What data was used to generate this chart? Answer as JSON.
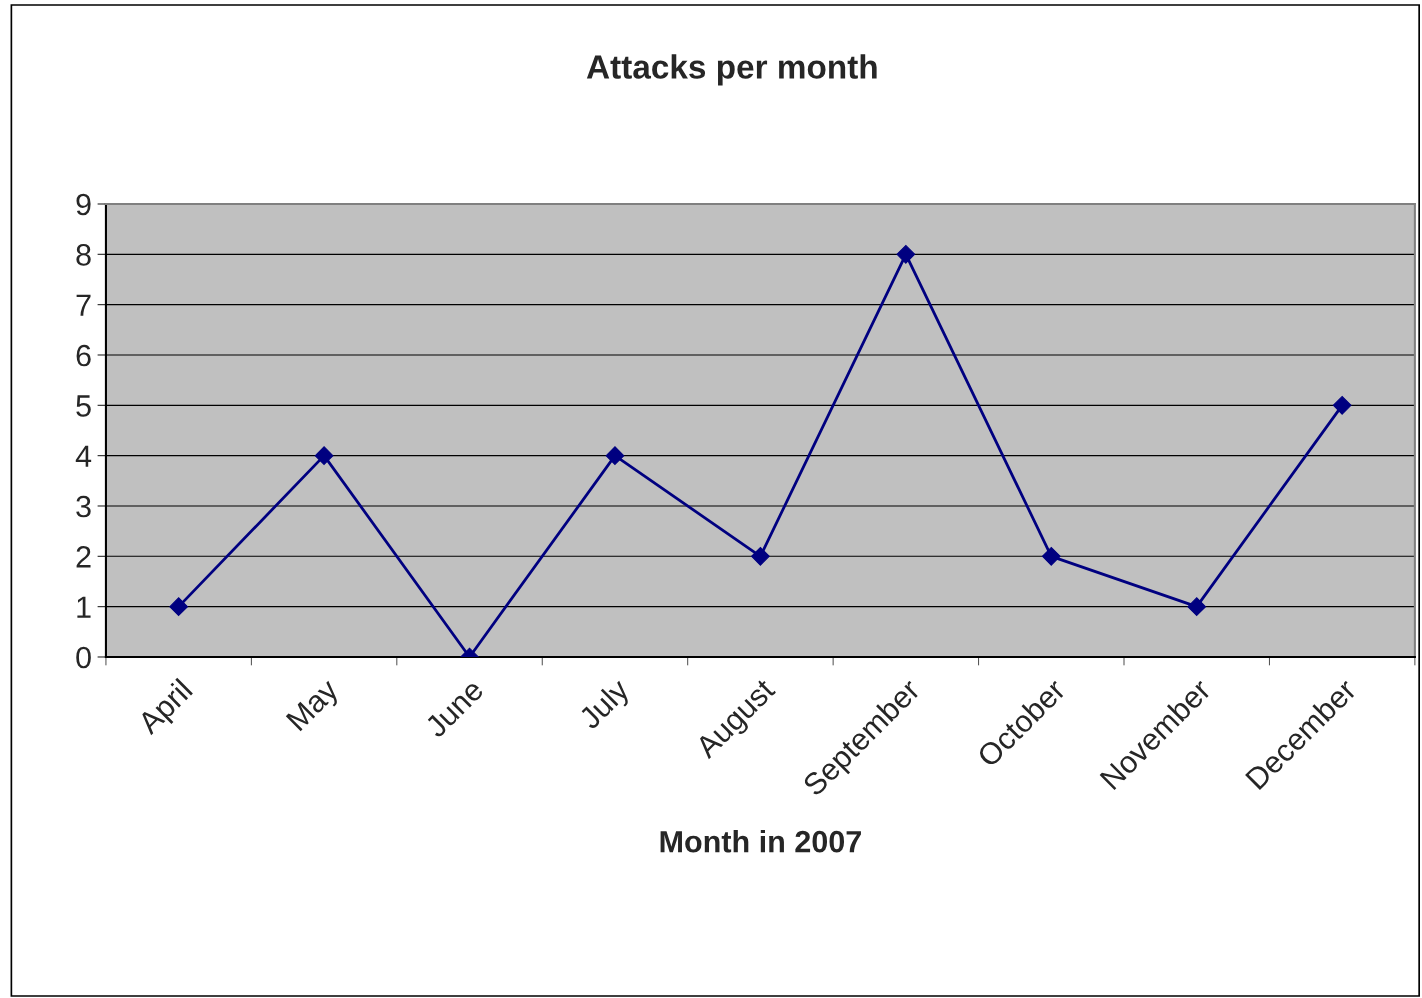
{
  "chart_data": {
    "type": "line",
    "title": "Attacks per month",
    "xlabel": "Month in 2007",
    "categories": [
      "April",
      "May",
      "June",
      "July",
      "August",
      "September",
      "October",
      "November",
      "December"
    ],
    "series": [
      {
        "color": "#000080",
        "values": [
          1,
          4,
          0,
          4,
          2,
          8,
          2,
          1,
          5
        ]
      }
    ],
    "ylim": [
      0,
      9
    ],
    "yticks": [
      0,
      1,
      2,
      3,
      4,
      5,
      6,
      7,
      8,
      9
    ],
    "grid": "y",
    "marker": "diamond",
    "line_style": "solid"
  }
}
